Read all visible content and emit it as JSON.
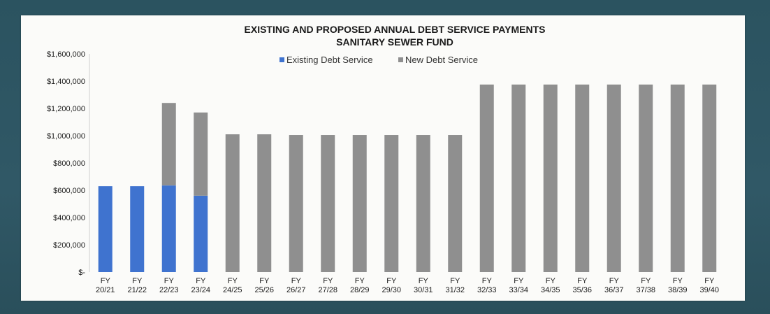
{
  "chart_data": {
    "type": "bar",
    "stacked": true,
    "title": "EXISTING AND PROPOSED ANNUAL DEBT SERVICE PAYMENTS",
    "subtitle": "SANITARY SEWER FUND",
    "categories": [
      [
        "FY",
        "20/21"
      ],
      [
        "FY",
        "21/22"
      ],
      [
        "FY",
        "22/23"
      ],
      [
        "FY",
        "23/24"
      ],
      [
        "FY",
        "24/25"
      ],
      [
        "FY",
        "25/26"
      ],
      [
        "FY",
        "26/27"
      ],
      [
        "FY",
        "27/28"
      ],
      [
        "FY",
        "28/29"
      ],
      [
        "FY",
        "29/30"
      ],
      [
        "FY",
        "30/31"
      ],
      [
        "FY",
        "31/32"
      ],
      [
        "FY",
        "32/33"
      ],
      [
        "FY",
        "33/34"
      ],
      [
        "FY",
        "34/35"
      ],
      [
        "FY",
        "35/36"
      ],
      [
        "FY",
        "36/37"
      ],
      [
        "FY",
        "37/38"
      ],
      [
        "FY",
        "38/39"
      ],
      [
        "FY",
        "39/40"
      ]
    ],
    "series": [
      {
        "name": "Existing Debt Service",
        "color": "#3f73cf",
        "values": [
          630000,
          630000,
          635000,
          560000,
          0,
          0,
          0,
          0,
          0,
          0,
          0,
          0,
          0,
          0,
          0,
          0,
          0,
          0,
          0,
          0
        ]
      },
      {
        "name": "New Debt Service",
        "color": "#8f8f8f",
        "values": [
          0,
          0,
          605000,
          610000,
          1010000,
          1010000,
          1005000,
          1005000,
          1005000,
          1005000,
          1005000,
          1005000,
          1375000,
          1375000,
          1375000,
          1375000,
          1375000,
          1375000,
          1375000,
          1375000
        ]
      }
    ],
    "ylim": [
      0,
      1600000
    ],
    "yticks": [
      0,
      200000,
      400000,
      600000,
      800000,
      1000000,
      1200000,
      1400000,
      1600000
    ],
    "ytick_labels": [
      "$-",
      "$200,000",
      "$400,000",
      "$600,000",
      "$800,000",
      "$1,000,000",
      "$1,200,000",
      "$1,400,000",
      "$1,600,000"
    ],
    "legend_position": "top-center",
    "grid": false
  }
}
